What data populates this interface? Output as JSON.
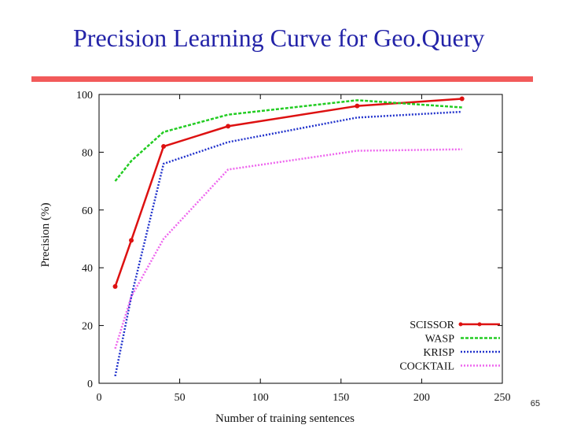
{
  "slide": {
    "title": "Precision Learning Curve for Geo.Query",
    "page_number": "65"
  },
  "colors": {
    "title": "#2323a8",
    "title_bar": "#f25a5a"
  },
  "chart_data": {
    "type": "line",
    "title": "",
    "xlabel": "Number of training sentences",
    "ylabel": "Precision (%)",
    "xlim": [
      0,
      250
    ],
    "ylim": [
      0,
      100
    ],
    "xticks": [
      0,
      50,
      100,
      150,
      200,
      250
    ],
    "yticks": [
      0,
      20,
      40,
      60,
      80,
      100
    ],
    "legend_position": "bottom-right",
    "series": [
      {
        "name": "SCISSOR",
        "color": "#dd1111",
        "dash": "",
        "width": 2.5,
        "markers": true,
        "x": [
          10,
          20,
          40,
          80,
          160,
          225
        ],
        "y": [
          33.5,
          49.5,
          82,
          89,
          96,
          98.5
        ]
      },
      {
        "name": "WASP",
        "color": "#22cc22",
        "dash": "4,2",
        "width": 2.5,
        "markers": false,
        "x": [
          10,
          20,
          40,
          80,
          160,
          225
        ],
        "y": [
          70,
          77,
          87,
          93,
          98,
          95.5
        ]
      },
      {
        "name": "KRISP",
        "color": "#2233cc",
        "dash": "2,2",
        "width": 2.5,
        "markers": false,
        "x": [
          10,
          20,
          40,
          80,
          160,
          225
        ],
        "y": [
          2.5,
          30,
          76,
          83.5,
          92,
          94
        ]
      },
      {
        "name": "COCKTAIL",
        "color": "#ee66ee",
        "dash": "2,2",
        "width": 2.5,
        "markers": false,
        "x": [
          10,
          20,
          40,
          80,
          160,
          225
        ],
        "y": [
          12,
          30,
          50,
          74,
          80.5,
          81
        ]
      }
    ]
  }
}
